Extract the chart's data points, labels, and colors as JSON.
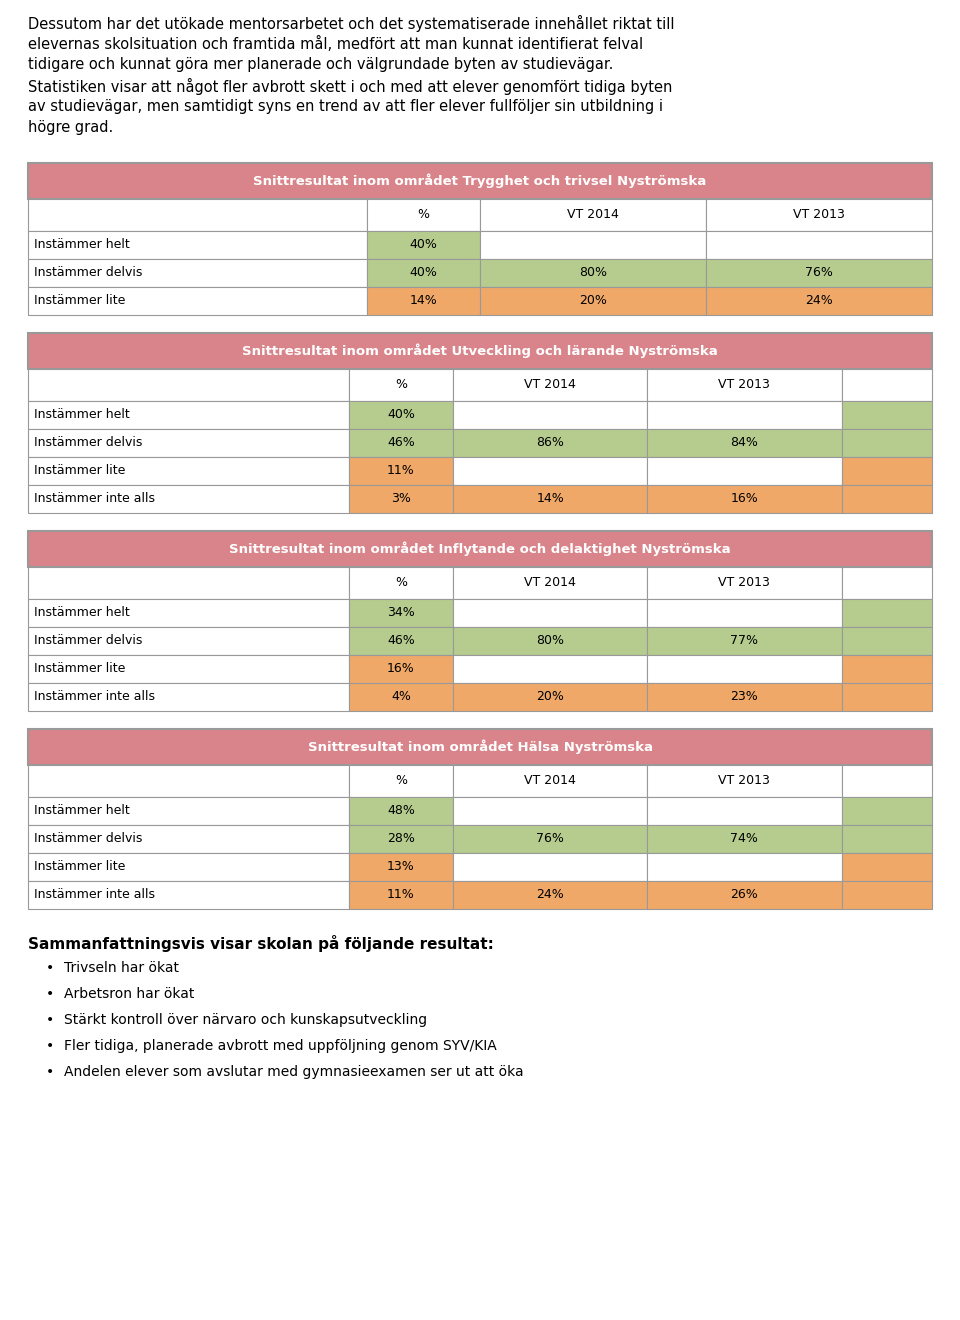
{
  "intro_lines": [
    "Dessutom har det utökade mentorsarbetet och det systematiserade innehållet riktat till",
    "elevernas skolsituation och framtida mål, medfört att man kunnat identifierat felval",
    "tidigare och kunnat göra mer planerade och välgrundade byten av studievägar.",
    "Statistiken visar att något fler avbrott skett i och med att elever genomfört tidiga byten",
    "av studievägar, men samtidigt syns en trend av att fler elever fullföljer sin utbildning i",
    "högre grad."
  ],
  "tables": [
    {
      "title": "Snittresultat inom området Trygghet och trivsel Nyströmska",
      "rows": [
        {
          "label": "Instämmer helt",
          "pct": "40%",
          "vt2014": "",
          "vt2013": "",
          "color": "green"
        },
        {
          "label": "Instämmer delvis",
          "pct": "40%",
          "vt2014": "80%",
          "vt2013": "76%",
          "color": "green"
        },
        {
          "label": "Instämmer lite",
          "pct": "14%",
          "vt2014": "20%",
          "vt2013": "24%",
          "color": "orange"
        }
      ],
      "extra_col": false
    },
    {
      "title": "Snittresultat inom området Utveckling och lärande Nyströmska",
      "rows": [
        {
          "label": "Instämmer helt",
          "pct": "40%",
          "vt2014": "",
          "vt2013": "",
          "color": "green"
        },
        {
          "label": "Instämmer delvis",
          "pct": "46%",
          "vt2014": "86%",
          "vt2013": "84%",
          "color": "green"
        },
        {
          "label": "Instämmer lite",
          "pct": "11%",
          "vt2014": "",
          "vt2013": "",
          "color": "orange"
        },
        {
          "label": "Instämmer inte alls",
          "pct": "3%",
          "vt2014": "14%",
          "vt2013": "16%",
          "color": "orange"
        }
      ],
      "extra_col": true
    },
    {
      "title": "Snittresultat inom området Inflytande och delaktighet Nyströmska",
      "rows": [
        {
          "label": "Instämmer helt",
          "pct": "34%",
          "vt2014": "",
          "vt2013": "",
          "color": "green"
        },
        {
          "label": "Instämmer delvis",
          "pct": "46%",
          "vt2014": "80%",
          "vt2013": "77%",
          "color": "green"
        },
        {
          "label": "Instämmer lite",
          "pct": "16%",
          "vt2014": "",
          "vt2013": "",
          "color": "orange"
        },
        {
          "label": "Instämmer inte alls",
          "pct": "4%",
          "vt2014": "20%",
          "vt2013": "23%",
          "color": "orange"
        }
      ],
      "extra_col": true
    },
    {
      "title": "Snittresultat inom området Hälsa Nyströmska",
      "rows": [
        {
          "label": "Instämmer helt",
          "pct": "48%",
          "vt2014": "",
          "vt2013": "",
          "color": "green"
        },
        {
          "label": "Instämmer delvis",
          "pct": "28%",
          "vt2014": "76%",
          "vt2013": "74%",
          "color": "green"
        },
        {
          "label": "Instämmer lite",
          "pct": "13%",
          "vt2014": "",
          "vt2013": "",
          "color": "orange"
        },
        {
          "label": "Instämmer inte alls",
          "pct": "11%",
          "vt2014": "24%",
          "vt2013": "26%",
          "color": "orange"
        }
      ],
      "extra_col": true
    }
  ],
  "summary_title": "Sammanfattningsvis visar skolan på följande resultat:",
  "bullets": [
    "Trivseln har ökat",
    "Arbetsron har ökat",
    "Stärkt kontroll över närvaro och kunskapsutveckling",
    "Fler tidiga, planerade avbrott med uppföljning genom SYV/KIA",
    "Andelen elever som avslutar med gymnasieexamen ser ut att öka"
  ],
  "header_bg": "#d9848a",
  "green_bg": "#b5cc8e",
  "orange_bg": "#f0a868",
  "white_bg": "#ffffff",
  "border_color": "#999999"
}
